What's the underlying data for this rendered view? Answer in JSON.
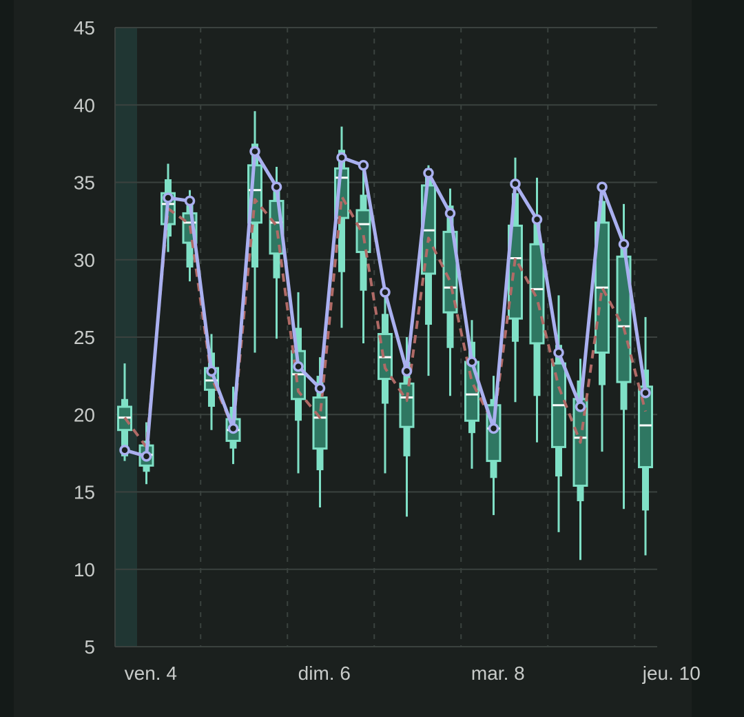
{
  "chart_data": {
    "type": "box",
    "title": "",
    "xlabel": "",
    "ylabel": "",
    "ylim": [
      5,
      45
    ],
    "yticks": [
      5,
      10,
      15,
      20,
      25,
      30,
      35,
      40,
      45
    ],
    "xtick_labels": [
      "ven. 4",
      "dim. 6",
      "mar. 8",
      "jeu. 10"
    ],
    "grid": true,
    "colors": {
      "background": "#1b201e",
      "outer": "#141a18",
      "grid": "#3b423f",
      "box_fill": "#2f7762",
      "box_edge": "#7fe0c6",
      "median": "#ffffff",
      "line": "#aab0f0",
      "dashed": "#b06a66",
      "highlight": "#203633"
    },
    "boxes": [
      {
        "whisker_low": 17.0,
        "p10": 17.3,
        "q1": 19.0,
        "median": 19.8,
        "q3": 20.5,
        "p90": 21.0,
        "whisker_high": 23.3
      },
      {
        "whisker_low": 15.5,
        "p10": 16.3,
        "q1": 16.7,
        "median": 17.4,
        "q3": 18.0,
        "p90": 18.3,
        "whisker_high": 19.5
      },
      {
        "whisker_low": 30.5,
        "p10": 31.5,
        "q1": 32.3,
        "median": 33.6,
        "q3": 34.3,
        "p90": 35.2,
        "whisker_high": 36.2
      },
      {
        "whisker_low": 28.6,
        "p10": 29.5,
        "q1": 31.1,
        "median": 32.4,
        "q3": 33.0,
        "p90": 34.0,
        "whisker_high": 34.5
      },
      {
        "whisker_low": 19.0,
        "p10": 20.5,
        "q1": 21.6,
        "median": 22.2,
        "q3": 23.0,
        "p90": 24.0,
        "whisker_high": 25.2
      },
      {
        "whisker_low": 16.8,
        "p10": 17.8,
        "q1": 18.3,
        "median": 19.0,
        "q3": 19.7,
        "p90": 20.5,
        "whisker_high": 21.8
      },
      {
        "whisker_low": 24.0,
        "p10": 29.5,
        "q1": 32.4,
        "median": 34.5,
        "q3": 36.1,
        "p90": 37.5,
        "whisker_high": 39.6
      },
      {
        "whisker_low": 24.9,
        "p10": 28.8,
        "q1": 30.4,
        "median": 32.4,
        "q3": 33.8,
        "p90": 35.0,
        "whisker_high": 36.0
      },
      {
        "whisker_low": 16.2,
        "p10": 19.6,
        "q1": 21.0,
        "median": 22.6,
        "q3": 24.1,
        "p90": 25.6,
        "whisker_high": 27.9
      },
      {
        "whisker_low": 14.0,
        "p10": 16.4,
        "q1": 17.8,
        "median": 19.8,
        "q3": 21.1,
        "p90": 22.5,
        "whisker_high": 23.7
      },
      {
        "whisker_low": 25.6,
        "p10": 29.2,
        "q1": 32.7,
        "median": 35.3,
        "q3": 35.9,
        "p90": 37.1,
        "whisker_high": 38.6
      },
      {
        "whisker_low": 24.6,
        "p10": 28.0,
        "q1": 30.5,
        "median": 32.3,
        "q3": 33.2,
        "p90": 34.2,
        "whisker_high": 36.1
      },
      {
        "whisker_low": 16.2,
        "p10": 20.7,
        "q1": 22.3,
        "median": 23.7,
        "q3": 25.2,
        "p90": 26.5,
        "whisker_high": 27.7
      },
      {
        "whisker_low": 13.4,
        "p10": 17.3,
        "q1": 19.2,
        "median": 21.1,
        "q3": 22.0,
        "p90": 23.4,
        "whisker_high": 25.0
      },
      {
        "whisker_low": 22.5,
        "p10": 25.8,
        "q1": 29.1,
        "median": 31.9,
        "q3": 34.8,
        "p90": 35.9,
        "whisker_high": 36.1
      },
      {
        "whisker_low": 21.2,
        "p10": 24.3,
        "q1": 26.6,
        "median": 28.2,
        "q3": 31.8,
        "p90": 33.5,
        "whisker_high": 34.6
      },
      {
        "whisker_low": 16.5,
        "p10": 18.8,
        "q1": 19.6,
        "median": 21.3,
        "q3": 23.4,
        "p90": 24.7,
        "whisker_high": 26.1
      },
      {
        "whisker_low": 13.5,
        "p10": 15.9,
        "q1": 17.0,
        "median": 19.1,
        "q3": 20.6,
        "p90": 21.0,
        "whisker_high": 22.5
      },
      {
        "whisker_low": 20.8,
        "p10": 24.7,
        "q1": 26.2,
        "median": 30.1,
        "q3": 32.2,
        "p90": 34.3,
        "whisker_high": 36.6
      },
      {
        "whisker_low": 18.2,
        "p10": 21.2,
        "q1": 24.6,
        "median": 28.1,
        "q3": 31.0,
        "p90": 32.6,
        "whisker_high": 35.3
      },
      {
        "whisker_low": 12.4,
        "p10": 16.0,
        "q1": 17.9,
        "median": 20.6,
        "q3": 23.3,
        "p90": 24.5,
        "whisker_high": 27.7
      },
      {
        "whisker_low": 10.6,
        "p10": 14.4,
        "q1": 15.4,
        "median": 18.5,
        "q3": 21.0,
        "p90": 22.2,
        "whisker_high": 23.6
      },
      {
        "whisker_low": 17.6,
        "p10": 21.9,
        "q1": 24.0,
        "median": 28.2,
        "q3": 32.4,
        "p90": 33.8,
        "whisker_high": 34.6
      },
      {
        "whisker_low": 13.9,
        "p10": 20.3,
        "q1": 22.1,
        "median": 25.7,
        "q3": 30.2,
        "p90": 31.0,
        "whisker_high": 33.6
      },
      {
        "whisker_low": 10.9,
        "p10": 13.8,
        "q1": 16.6,
        "median": 19.3,
        "q3": 21.8,
        "p90": 22.9,
        "whisker_high": 26.3
      }
    ],
    "series": [
      {
        "values": [
          17.7,
          17.3,
          34.0,
          33.8,
          22.8,
          19.1,
          37.0,
          34.7,
          23.1,
          21.7,
          36.6,
          36.1,
          27.9,
          22.8,
          35.6,
          33.0,
          23.4,
          19.1,
          34.9,
          32.6,
          24.0,
          20.5,
          34.7,
          31.0,
          21.4
        ]
      },
      {
        "style": "dashed",
        "values": [
          19.8,
          17.9,
          33.3,
          32.3,
          22.4,
          19.1,
          33.9,
          32.2,
          21.5,
          19.8,
          34.1,
          31.6,
          23.0,
          20.9,
          31.4,
          28.6,
          22.1,
          19.4,
          30.1,
          27.5,
          21.8,
          18.2,
          28.2,
          25.6,
          20.2
        ]
      }
    ]
  }
}
